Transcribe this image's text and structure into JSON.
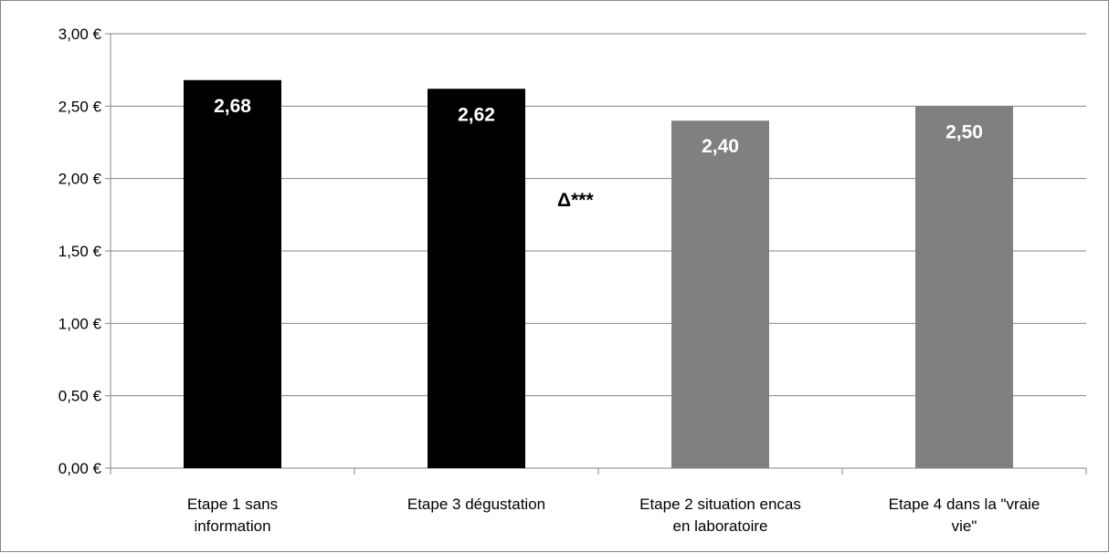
{
  "chart_data": {
    "type": "bar",
    "categories": [
      [
        "Etape 1 sans",
        "information"
      ],
      [
        "Etape 3 dégustation"
      ],
      [
        "Etape 2 situation encas",
        "en laboratoire"
      ],
      [
        "Etape 4 dans la \"vraie",
        "vie\""
      ]
    ],
    "values": [
      2.68,
      2.62,
      2.4,
      2.5
    ],
    "data_labels": [
      "2,68",
      "2,62",
      "2,40",
      "2,50"
    ],
    "bar_colors": [
      "#000000",
      "#000000",
      "#808080",
      "#808080"
    ],
    "ylim": [
      0,
      3
    ],
    "yticks": [
      {
        "value": 0,
        "label": "0,00 €"
      },
      {
        "value": 0.5,
        "label": "0,50 €"
      },
      {
        "value": 1,
        "label": "1,00 €"
      },
      {
        "value": 1.5,
        "label": "1,50 €"
      },
      {
        "value": 2,
        "label": "2,00 €"
      },
      {
        "value": 2.5,
        "label": "2,50 €"
      },
      {
        "value": 3,
        "label": "3,00 €"
      }
    ],
    "annotation": "Δ***",
    "title": "",
    "xlabel": "",
    "ylabel": "",
    "grid": true,
    "legend": "none"
  }
}
